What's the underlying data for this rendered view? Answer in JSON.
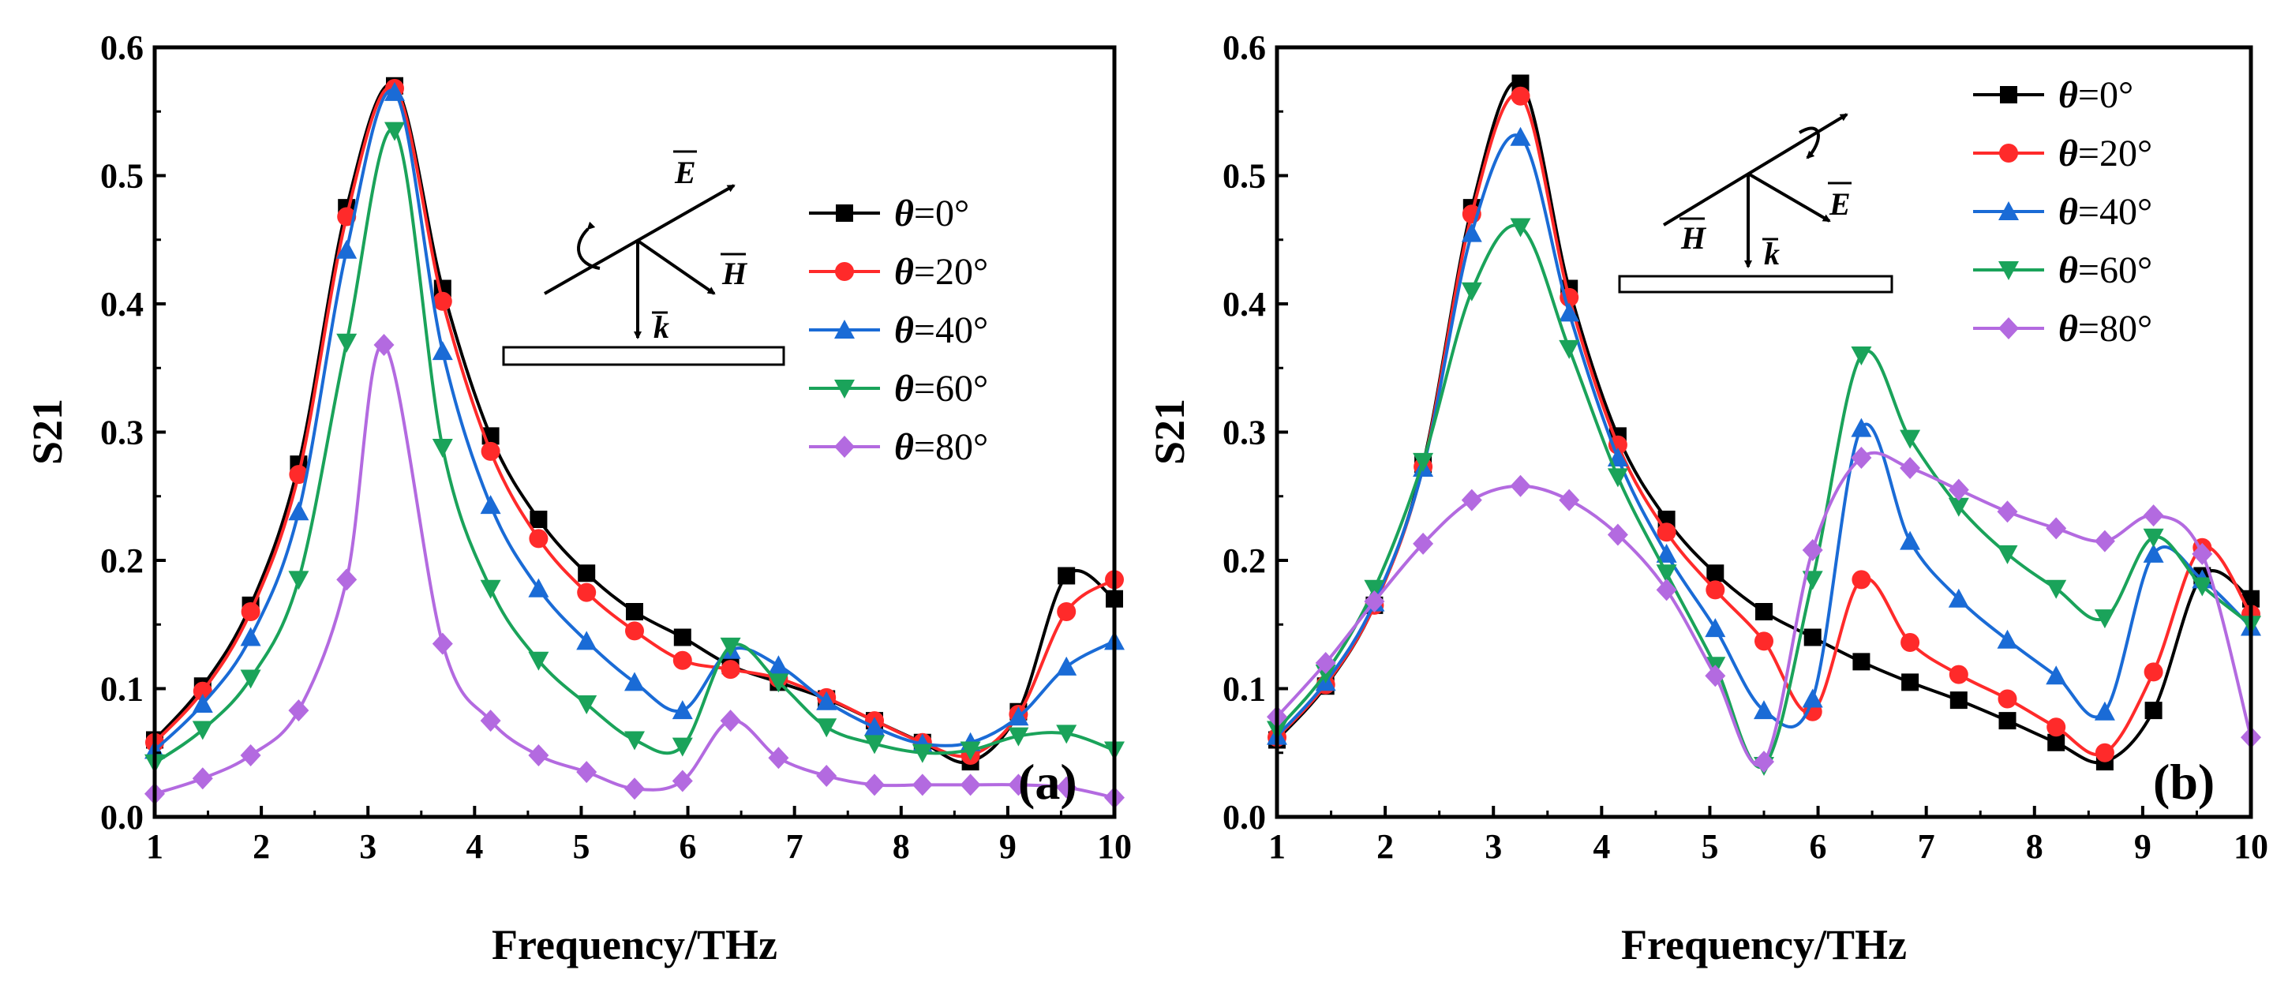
{
  "chart_data": [
    {
      "type": "line",
      "panel_label": "(a)",
      "xlabel": "Frequency/THz",
      "ylabel": "S21",
      "xlim": [
        1,
        10
      ],
      "ylim": [
        0,
        0.6
      ],
      "xticks": [
        "1",
        "2",
        "3",
        "4",
        "5",
        "6",
        "7",
        "8",
        "9",
        "10"
      ],
      "yticks": [
        "0.0",
        "0.1",
        "0.2",
        "0.3",
        "0.4",
        "0.5",
        "0.6"
      ],
      "legend_position": "right",
      "inset": {
        "E": "E",
        "H": "H",
        "k": "k"
      },
      "series": [
        {
          "name": "θ=0°",
          "theta": "θ",
          "eq": "=0°",
          "color": "#000000",
          "marker": "square",
          "x": [
            1,
            1.45,
            1.9,
            2.35,
            2.8,
            3.25,
            3.7,
            4.15,
            4.6,
            5.05,
            5.5,
            5.95,
            6.4,
            6.85,
            7.3,
            7.75,
            8.2,
            8.65,
            9.1,
            9.55,
            10
          ],
          "y": [
            0.06,
            0.102,
            0.165,
            0.275,
            0.475,
            0.57,
            0.412,
            0.297,
            0.232,
            0.19,
            0.16,
            0.14,
            0.118,
            0.105,
            0.092,
            0.075,
            0.058,
            0.043,
            0.082,
            0.188,
            0.17
          ]
        },
        {
          "name": "θ=20°",
          "theta": "θ",
          "eq": "=20°",
          "color": "#ff2a2a",
          "marker": "circle",
          "x": [
            1,
            1.45,
            1.9,
            2.35,
            2.8,
            3.25,
            3.7,
            4.15,
            4.6,
            5.05,
            5.5,
            5.95,
            6.4,
            6.85,
            7.3,
            7.75,
            8.2,
            8.65,
            9.1,
            9.55,
            10
          ],
          "y": [
            0.058,
            0.098,
            0.16,
            0.267,
            0.468,
            0.568,
            0.402,
            0.285,
            0.217,
            0.175,
            0.145,
            0.122,
            0.115,
            0.108,
            0.093,
            0.075,
            0.058,
            0.048,
            0.08,
            0.16,
            0.185
          ]
        },
        {
          "name": "θ=40°",
          "theta": "θ",
          "eq": "=40°",
          "color": "#1a6bd6",
          "marker": "triangle-up",
          "x": [
            1,
            1.45,
            1.9,
            2.35,
            2.8,
            3.25,
            3.7,
            4.15,
            4.6,
            5.05,
            5.5,
            5.95,
            6.4,
            6.85,
            7.3,
            7.75,
            8.2,
            8.65,
            9.1,
            9.55,
            10
          ],
          "y": [
            0.052,
            0.088,
            0.14,
            0.238,
            0.442,
            0.565,
            0.363,
            0.243,
            0.178,
            0.137,
            0.105,
            0.083,
            0.13,
            0.118,
            0.09,
            0.07,
            0.057,
            0.058,
            0.078,
            0.117,
            0.137
          ]
        },
        {
          "name": "θ=60°",
          "theta": "θ",
          "eq": "=60°",
          "color": "#1aa35a",
          "marker": "triangle-down",
          "x": [
            1,
            1.45,
            1.9,
            2.35,
            2.8,
            3.25,
            3.7,
            4.15,
            4.6,
            5.05,
            5.5,
            5.95,
            6.4,
            6.85,
            7.3,
            7.75,
            8.2,
            8.65,
            9.1,
            9.55,
            10
          ],
          "y": [
            0.042,
            0.068,
            0.108,
            0.185,
            0.37,
            0.535,
            0.288,
            0.178,
            0.122,
            0.088,
            0.06,
            0.055,
            0.133,
            0.105,
            0.07,
            0.057,
            0.05,
            0.052,
            0.063,
            0.065,
            0.052
          ]
        },
        {
          "name": "θ=80°",
          "theta": "θ",
          "eq": "=80°",
          "color": "#b36ae0",
          "marker": "diamond",
          "x": [
            1,
            1.45,
            1.9,
            2.35,
            2.8,
            3.15,
            3.7,
            4.15,
            4.6,
            5.05,
            5.5,
            5.95,
            6.4,
            6.85,
            7.3,
            7.75,
            8.2,
            8.65,
            9.1,
            9.55,
            10
          ],
          "y": [
            0.018,
            0.03,
            0.048,
            0.083,
            0.185,
            0.368,
            0.135,
            0.075,
            0.048,
            0.035,
            0.022,
            0.028,
            0.075,
            0.046,
            0.032,
            0.025,
            0.025,
            0.025,
            0.025,
            0.023,
            0.015
          ]
        }
      ]
    },
    {
      "type": "line",
      "panel_label": "(b)",
      "xlabel": "Frequency/THz",
      "ylabel": "S21",
      "xlim": [
        1,
        10
      ],
      "ylim": [
        0,
        0.6
      ],
      "xticks": [
        "1",
        "2",
        "3",
        "4",
        "5",
        "6",
        "7",
        "8",
        "9",
        "10"
      ],
      "yticks": [
        "0.0",
        "0.1",
        "0.2",
        "0.3",
        "0.4",
        "0.5",
        "0.6"
      ],
      "legend_position": "top-right",
      "inset": {
        "E": "E",
        "H": "H",
        "k": "k"
      },
      "series": [
        {
          "name": "θ=0°",
          "theta": "θ",
          "eq": "=0°",
          "color": "#000000",
          "marker": "square",
          "x": [
            1,
            1.45,
            1.9,
            2.35,
            2.8,
            3.25,
            3.7,
            4.15,
            4.6,
            5.05,
            5.5,
            5.95,
            6.4,
            6.85,
            7.3,
            7.75,
            8.2,
            8.65,
            9.1,
            9.55,
            10
          ],
          "y": [
            0.06,
            0.102,
            0.165,
            0.275,
            0.475,
            0.572,
            0.412,
            0.297,
            0.232,
            0.19,
            0.16,
            0.14,
            0.121,
            0.105,
            0.091,
            0.075,
            0.058,
            0.043,
            0.083,
            0.188,
            0.17
          ]
        },
        {
          "name": "θ=20°",
          "theta": "θ",
          "eq": "=20°",
          "color": "#ff2a2a",
          "marker": "circle",
          "x": [
            1,
            1.45,
            1.9,
            2.35,
            2.8,
            3.25,
            3.7,
            4.15,
            4.6,
            5.05,
            5.5,
            5.95,
            6.4,
            6.85,
            7.3,
            7.75,
            8.2,
            8.65,
            9.1,
            9.55,
            10
          ],
          "y": [
            0.062,
            0.103,
            0.165,
            0.273,
            0.47,
            0.562,
            0.405,
            0.29,
            0.222,
            0.177,
            0.137,
            0.082,
            0.185,
            0.136,
            0.111,
            0.092,
            0.07,
            0.05,
            0.113,
            0.21,
            0.158
          ]
        },
        {
          "name": "θ=40°",
          "theta": "θ",
          "eq": "=40°",
          "color": "#1a6bd6",
          "marker": "triangle-up",
          "x": [
            1,
            1.45,
            1.9,
            2.35,
            2.8,
            3.25,
            3.7,
            4.15,
            4.6,
            5.05,
            5.5,
            5.95,
            6.4,
            6.85,
            7.3,
            7.75,
            8.2,
            8.65,
            9.1,
            9.55,
            10
          ],
          "y": [
            0.063,
            0.105,
            0.167,
            0.272,
            0.455,
            0.53,
            0.393,
            0.28,
            0.205,
            0.147,
            0.083,
            0.092,
            0.303,
            0.215,
            0.17,
            0.138,
            0.11,
            0.082,
            0.205,
            0.185,
            0.148
          ]
        },
        {
          "name": "θ=60°",
          "theta": "θ",
          "eq": "=60°",
          "color": "#1aa35a",
          "marker": "triangle-down",
          "x": [
            1,
            1.45,
            1.9,
            2.35,
            2.8,
            3.25,
            3.7,
            4.15,
            4.6,
            5.05,
            5.5,
            5.95,
            6.4,
            6.85,
            7.3,
            7.75,
            8.2,
            8.65,
            9.1,
            9.55,
            10
          ],
          "y": [
            0.068,
            0.112,
            0.178,
            0.277,
            0.41,
            0.46,
            0.365,
            0.265,
            0.19,
            0.118,
            0.04,
            0.185,
            0.36,
            0.295,
            0.242,
            0.205,
            0.178,
            0.155,
            0.218,
            0.18,
            0.15
          ]
        },
        {
          "name": "θ=80°",
          "theta": "θ",
          "eq": "=80°",
          "color": "#b36ae0",
          "marker": "diamond",
          "x": [
            1,
            1.45,
            1.9,
            2.35,
            2.8,
            3.25,
            3.7,
            4.15,
            4.6,
            5.05,
            5.5,
            5.95,
            6.4,
            6.85,
            7.3,
            7.75,
            8.2,
            8.65,
            9.1,
            9.55,
            10
          ],
          "y": [
            0.078,
            0.12,
            0.168,
            0.213,
            0.247,
            0.258,
            0.247,
            0.22,
            0.177,
            0.11,
            0.043,
            0.208,
            0.28,
            0.272,
            0.255,
            0.238,
            0.225,
            0.215,
            0.235,
            0.205,
            0.062
          ]
        }
      ]
    }
  ]
}
